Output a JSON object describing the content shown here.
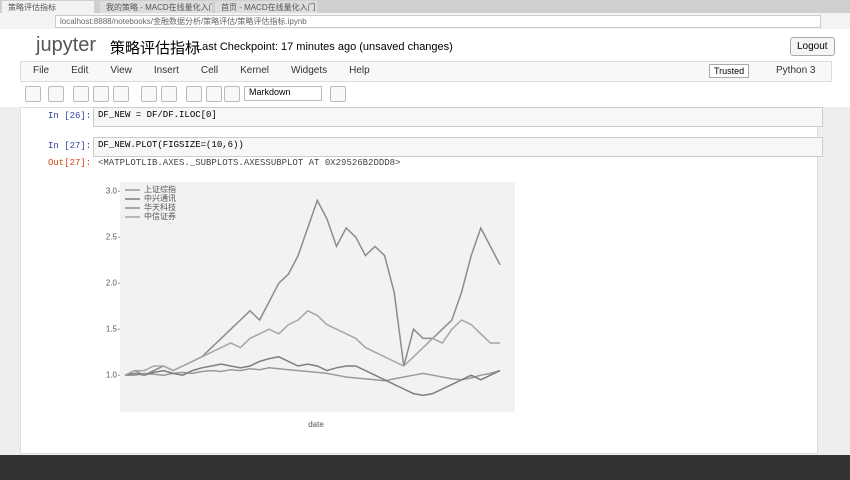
{
  "browser": {
    "tabs": [
      "策略评估指标",
      "我的策略 - MACD在线量化入门",
      "首页 - MACD在线量化入门"
    ],
    "address": "localhost:8888/notebooks/金融数据分析/策略评估/策略评估指标.ipynb"
  },
  "header": {
    "logo": "jupyter",
    "title": "策略评估指标",
    "checkpoint": "Last Checkpoint: 17 minutes ago (unsaved changes)",
    "logout": "Logout"
  },
  "menu": [
    "File",
    "Edit",
    "View",
    "Insert",
    "Cell",
    "Kernel",
    "Widgets",
    "Help"
  ],
  "trusted": "Trusted",
  "kernel": "Python 3",
  "cell_type": "Markdown",
  "cells": [
    {
      "prompt": "In [26]:",
      "code": "DF_NEW = DF/DF.ILOC[0]"
    },
    {
      "prompt": "In [27]:",
      "code": "DF_NEW.PLOT(FIGSIZE=(10,6))"
    }
  ],
  "output": {
    "prompt": "Out[27]:",
    "text": "<MATPLOTLIB.AXES._SUBPLOTS.AXESSUBPLOT AT 0X29526B2DDD8>"
  },
  "chart_data": {
    "type": "line",
    "xlabel": "date",
    "ylim": [
      0.6,
      3.1
    ],
    "yticks": [
      {
        "value": 1,
        "label": "1.0"
      },
      1.5,
      {
        "value": 2,
        "label": "2.0"
      },
      2.5,
      {
        "value": 3,
        "label": "3.0"
      }
    ],
    "series": [
      {
        "name": "上证综指",
        "color": "#9a9a9a",
        "values": [
          1.0,
          1.0,
          1.02,
          1.01,
          1.0,
          1.02,
          1.03,
          1.02,
          1.04,
          1.05,
          1.04,
          1.06,
          1.05,
          1.07,
          1.06,
          1.08,
          1.07,
          1.06,
          1.05,
          1.04,
          1.03,
          1.02,
          1.0,
          0.98,
          0.97,
          0.96,
          0.95,
          0.94,
          0.96,
          0.98,
          1.0,
          1.02,
          1.0,
          0.98,
          0.96,
          0.95,
          0.97,
          1.0,
          1.02,
          1.05
        ]
      },
      {
        "name": "中兴通讯",
        "color": "#7e7e7e",
        "values": [
          1.0,
          1.02,
          1.0,
          1.03,
          1.05,
          1.02,
          1.0,
          1.05,
          1.08,
          1.1,
          1.12,
          1.1,
          1.08,
          1.1,
          1.15,
          1.18,
          1.2,
          1.15,
          1.1,
          1.12,
          1.1,
          1.05,
          1.08,
          1.1,
          1.1,
          1.05,
          1.0,
          0.95,
          0.9,
          0.85,
          0.8,
          0.78,
          0.8,
          0.85,
          0.9,
          0.95,
          1.0,
          0.95,
          1.0,
          1.05
        ]
      },
      {
        "name": "华天科技",
        "color": "#8c8c8c",
        "values": [
          1.0,
          1.05,
          1.0,
          1.05,
          1.1,
          1.05,
          1.1,
          1.15,
          1.2,
          1.3,
          1.4,
          1.5,
          1.6,
          1.7,
          1.6,
          1.8,
          2.0,
          2.1,
          2.3,
          2.6,
          2.9,
          2.7,
          2.4,
          2.6,
          2.5,
          2.3,
          2.4,
          2.3,
          1.9,
          1.1,
          1.5,
          1.4,
          1.4,
          1.5,
          1.6,
          1.9,
          2.3,
          2.6,
          2.4,
          2.2
        ]
      },
      {
        "name": "中信证券",
        "color": "#a6a6a6",
        "values": [
          1.0,
          1.05,
          1.05,
          1.1,
          1.1,
          1.05,
          1.1,
          1.15,
          1.2,
          1.25,
          1.3,
          1.35,
          1.3,
          1.4,
          1.45,
          1.5,
          1.45,
          1.55,
          1.6,
          1.7,
          1.65,
          1.55,
          1.5,
          1.45,
          1.4,
          1.3,
          1.25,
          1.2,
          1.15,
          1.1,
          1.2,
          1.3,
          1.4,
          1.35,
          1.5,
          1.6,
          1.55,
          1.45,
          1.35,
          1.35
        ]
      }
    ]
  }
}
